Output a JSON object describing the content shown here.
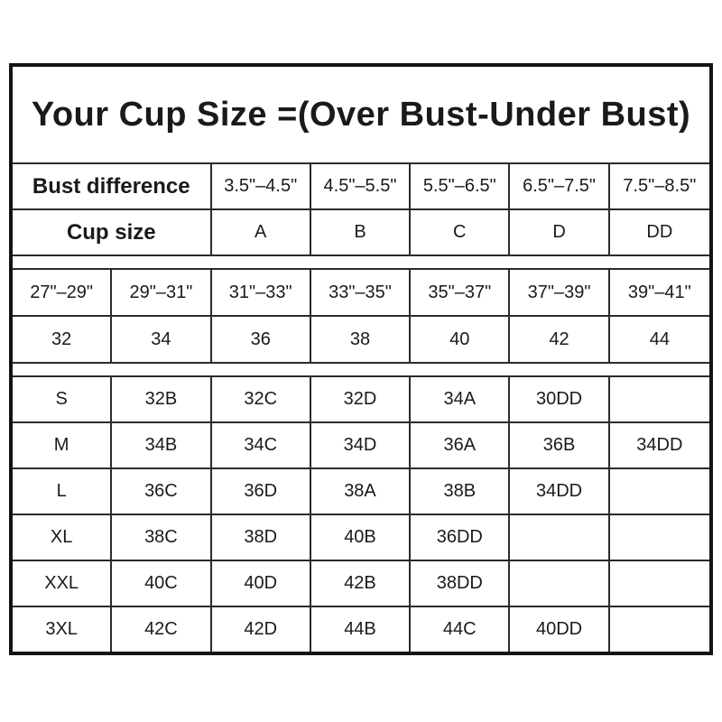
{
  "colors": {
    "outer_border": "#141414",
    "grid_line": "#2b2b2b",
    "text": "#1a1a1a",
    "background": "#ffffff"
  },
  "chart_data": {
    "type": "table",
    "title": "Your Cup Size =(Over Bust-Under Bust)",
    "tables": [
      {
        "name": "bust_difference_to_cup_size",
        "rows": [
          [
            "Bust difference",
            "3.5\"–4.5\"",
            "4.5\"–5.5\"",
            "5.5\"–6.5\"",
            "6.5\"–7.5\"",
            "7.5\"–8.5\""
          ],
          [
            "Cup size",
            "A",
            "B",
            "C",
            "D",
            "DD"
          ]
        ]
      },
      {
        "name": "under_bust_to_band_size",
        "rows": [
          [
            "27\"–29\"",
            "29\"–31\"",
            "31\"–33\"",
            "33\"–35\"",
            "35\"–37\"",
            "37\"–39\"",
            "39\"–41\""
          ],
          [
            "32",
            "34",
            "36",
            "38",
            "40",
            "42",
            "44"
          ]
        ]
      },
      {
        "name": "garment_size_to_bra_sizes",
        "rows": [
          [
            "S",
            "32B",
            "32C",
            "32D",
            "34A",
            "30DD",
            ""
          ],
          [
            "M",
            "34B",
            "34C",
            "34D",
            "36A",
            "36B",
            "34DD"
          ],
          [
            "L",
            "36C",
            "36D",
            "38A",
            "38B",
            "34DD",
            ""
          ],
          [
            "XL",
            "38C",
            "38D",
            "40B",
            "36DD",
            "",
            ""
          ],
          [
            "XXL",
            "40C",
            "40D",
            "42B",
            "38DD",
            "",
            ""
          ],
          [
            "3XL",
            "42C",
            "42D",
            "44B",
            "44C",
            "40DD",
            ""
          ]
        ]
      }
    ]
  }
}
